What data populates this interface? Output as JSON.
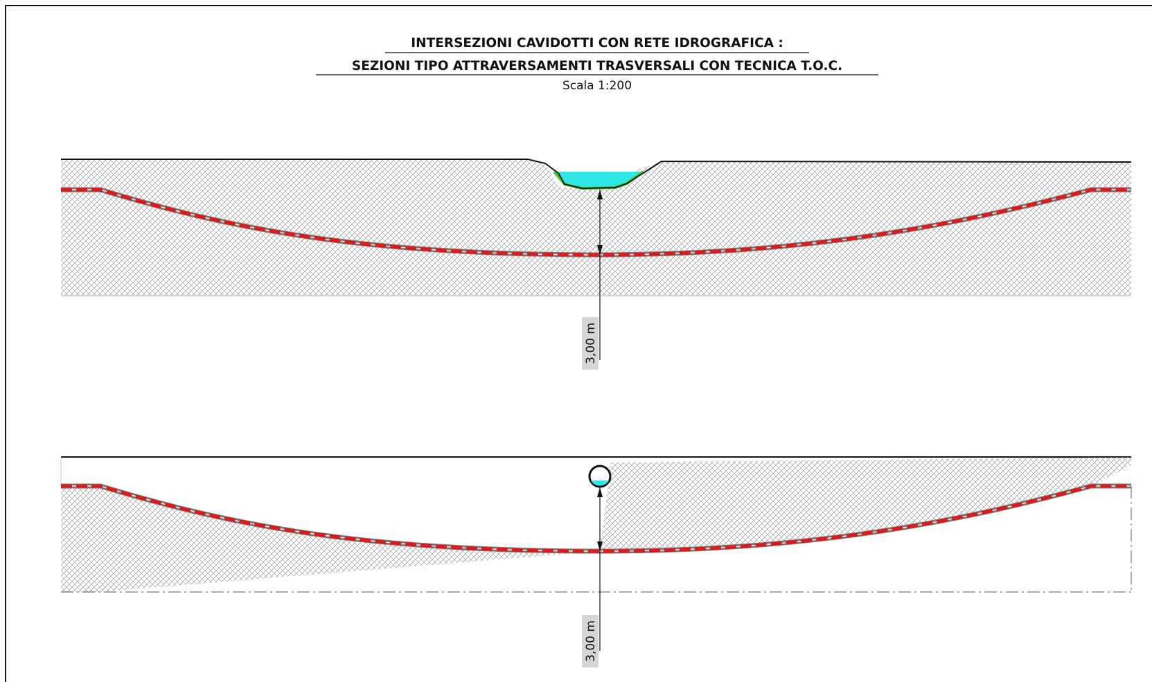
{
  "title": {
    "line1": "INTERSEZIONI CAVIDOTTI CON RETE IDROGRAFICA :",
    "line2": "SEZIONI TIPO ATTRAVERSAMENTI TRASVERSALI CON  TECNICA T.O.C.",
    "scale": "Scala 1:200"
  },
  "section_top": {
    "depth_label": "3,00 m"
  },
  "section_bottom": {
    "depth_label": "3,00 m"
  },
  "colors": {
    "soil_hatch": "#9a9a9a",
    "water": "#2fe6e6",
    "channel_bed": "#39d12b",
    "cable": "#e01818",
    "ground_line": "#111111",
    "label_bg": "#d6d6d6"
  }
}
